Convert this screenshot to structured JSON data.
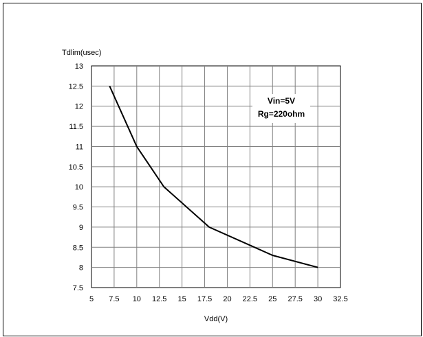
{
  "chart_data": {
    "type": "line",
    "title": "",
    "xlabel": "Vdd(V)",
    "ylabel": "Tdlim(usec)",
    "xlim": [
      5,
      32.5
    ],
    "ylim": [
      7.5,
      13
    ],
    "x_ticks": [
      "5",
      "7.5",
      "10",
      "12.5",
      "15",
      "17.5",
      "20",
      "22.5",
      "25",
      "27.5",
      "30",
      "32.5"
    ],
    "y_ticks": [
      "7.5",
      "8",
      "8.5",
      "9",
      "9.5",
      "10",
      "10.5",
      "11",
      "11.5",
      "12",
      "12.5",
      "13"
    ],
    "grid": true,
    "annotations": [
      "Vin=5V",
      "Rg=220ohm"
    ],
    "series": [
      {
        "x": [
          7,
          10,
          13,
          18,
          25,
          30
        ],
        "y": [
          12.5,
          11,
          10,
          9,
          8.3,
          8
        ]
      }
    ],
    "line_color": "#000000"
  }
}
